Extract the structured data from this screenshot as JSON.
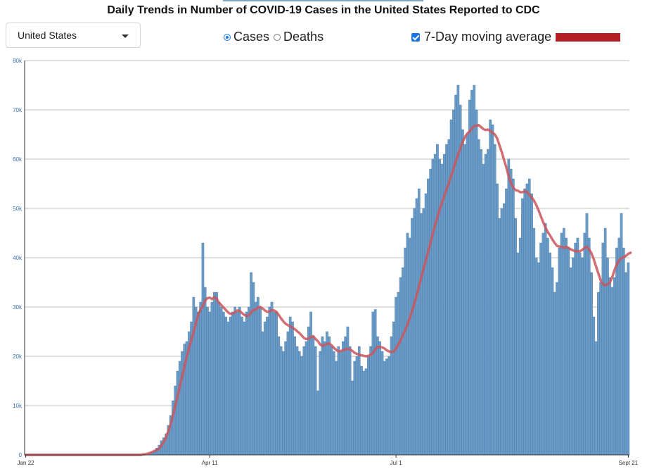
{
  "header": {
    "title": "Daily Trends in Number of COVID-19 Cases in the United States Reported to CDC"
  },
  "controls": {
    "location_select": {
      "value": "United States"
    },
    "metric_radio": {
      "options": [
        "Cases",
        "Deaths"
      ],
      "selected": "Cases"
    },
    "moving_average": {
      "label": "7-Day moving average",
      "checked": true,
      "color": "#b22025"
    }
  },
  "colors": {
    "bar": "#6a9bc7",
    "bar_stroke": "#3f73a4",
    "line": "#c9565c",
    "grid": "#bfbfbf",
    "tick_text": "#3a6fa8"
  },
  "chart_data": {
    "type": "bar",
    "title": "Daily Trends in Number of COVID-19 Cases in the United States Reported to CDC",
    "xlabel": "",
    "ylabel": "",
    "x_start_label": "Jan 22",
    "x_end_label": "Sept 21",
    "x_tick_labels": [
      "Jan 22",
      "Apr 11",
      "Jul 1",
      "Sept 21"
    ],
    "y_tick_labels": [
      "0",
      "10k",
      "20k",
      "30k",
      "40k",
      "50k",
      "60k",
      "70k",
      "80k"
    ],
    "ylim": [
      0,
      80000
    ],
    "grid": true,
    "series": [
      {
        "name": "Cases",
        "type": "bar",
        "values": [
          0,
          0,
          0,
          0,
          0,
          0,
          0,
          0,
          0,
          0,
          0,
          0,
          0,
          0,
          0,
          0,
          0,
          0,
          0,
          0,
          0,
          0,
          0,
          0,
          0,
          0,
          0,
          0,
          0,
          0,
          0,
          0,
          0,
          0,
          0,
          0,
          0,
          0,
          0,
          0,
          0,
          0,
          0,
          0,
          0,
          0,
          0,
          0,
          0,
          0,
          0,
          0,
          0,
          0,
          300,
          500,
          800,
          1400,
          2000,
          2900,
          3500,
          4300,
          6000,
          8000,
          11000,
          14000,
          17000,
          19000,
          21000,
          22500,
          23000,
          25000,
          27000,
          32000,
          30000,
          29000,
          31000,
          43000,
          34000,
          30000,
          29000,
          31000,
          33000,
          33000,
          31000,
          30000,
          29000,
          28000,
          27000,
          28000,
          29000,
          30000,
          29000,
          30000,
          28000,
          27000,
          29000,
          30000,
          37000,
          35000,
          31000,
          32000,
          30000,
          25000,
          27000,
          28000,
          30000,
          31000,
          29000,
          29000,
          24000,
          22000,
          21000,
          23000,
          25000,
          28000,
          27000,
          24000,
          22000,
          21000,
          20000,
          22000,
          23000,
          26000,
          29000,
          24000,
          22000,
          13000,
          21000,
          24000,
          23000,
          25000,
          24000,
          22000,
          21000,
          19000,
          22000,
          21000,
          23000,
          24000,
          26000,
          22000,
          15000,
          19000,
          20000,
          22000,
          18000,
          17000,
          17500,
          20000,
          22000,
          29000,
          29500,
          24000,
          23000,
          21000,
          19000,
          19500,
          20000,
          24000,
          27000,
          32000,
          33000,
          36000,
          38000,
          42000,
          45000,
          44000,
          48000,
          50000,
          52000,
          54000,
          49000,
          50000,
          53000,
          56000,
          58000,
          60000,
          61000,
          63000,
          60000,
          59000,
          61000,
          63000,
          64000,
          68000,
          70000,
          73000,
          75000,
          71000,
          66000,
          63000,
          65000,
          72000,
          74000,
          75000,
          70000,
          64000,
          62000,
          59000,
          61000,
          62000,
          68000,
          67000,
          63000,
          55000,
          48000,
          50000,
          51000,
          54000,
          60000,
          58000,
          56000,
          48000,
          41000,
          44000,
          52000,
          54000,
          55000,
          56000,
          53000,
          46000,
          40000,
          39000,
          43000,
          45000,
          47000,
          44000,
          41000,
          38000,
          33000,
          35000,
          42000,
          45000,
          46000,
          44000,
          42000,
          38000,
          40000,
          43000,
          44000,
          41000,
          40000,
          45000,
          49000,
          44000,
          37000,
          28000,
          23000,
          33000,
          35000,
          43000,
          46000,
          40000,
          36000,
          34000,
          36000,
          42000,
          44000,
          49000,
          42000,
          37000,
          39000
        ]
      },
      {
        "name": "7-Day moving average",
        "type": "line",
        "values": [
          0,
          0,
          0,
          0,
          0,
          0,
          0,
          0,
          0,
          0,
          0,
          0,
          0,
          0,
          0,
          0,
          0,
          0,
          0,
          0,
          0,
          0,
          0,
          0,
          0,
          0,
          0,
          0,
          0,
          0,
          0,
          0,
          0,
          0,
          0,
          0,
          0,
          0,
          0,
          0,
          0,
          0,
          0,
          0,
          0,
          0,
          0,
          0,
          0,
          0,
          0,
          100,
          150,
          250,
          400,
          600,
          800,
          1000,
          1300,
          1900,
          2600,
          3600,
          4800,
          6200,
          8000,
          9900,
          11900,
          13900,
          15900,
          17900,
          19900,
          21700,
          23300,
          25000,
          26700,
          28400,
          29500,
          30200,
          31300,
          31800,
          31900,
          31600,
          32000,
          31700,
          30900,
          30400,
          29900,
          29400,
          28900,
          28600,
          28700,
          28900,
          29300,
          29200,
          28800,
          28400,
          28200,
          28300,
          28900,
          29400,
          29500,
          29900,
          30000,
          29700,
          29300,
          29000,
          29100,
          29400,
          29300,
          29000,
          28400,
          27700,
          27100,
          26600,
          26300,
          26100,
          25800,
          25500,
          25100,
          24700,
          24200,
          23700,
          23500,
          23600,
          23900,
          24100,
          23500,
          23100,
          22400,
          22100,
          22300,
          22500,
          22600,
          22200,
          21700,
          21300,
          21000,
          21100,
          21200,
          21400,
          21500,
          21400,
          21100,
          20700,
          20500,
          20300,
          20200,
          20100,
          20000,
          20100,
          20300,
          20700,
          21400,
          21900,
          21900,
          21800,
          21600,
          21200,
          21000,
          20800,
          21000,
          21600,
          22400,
          23200,
          24300,
          25300,
          26500,
          27800,
          29200,
          30800,
          32400,
          34200,
          36000,
          37800,
          39500,
          41300,
          43000,
          44900,
          46600,
          48200,
          49800,
          51200,
          52500,
          53900,
          55200,
          56600,
          58000,
          59600,
          61000,
          62200,
          63500,
          64500,
          65200,
          65600,
          66200,
          66700,
          66800,
          66900,
          66500,
          66100,
          65900,
          66000,
          65700,
          65300,
          65000,
          64200,
          62800,
          61400,
          59800,
          58300,
          56500,
          55200,
          54200,
          53700,
          53600,
          53300,
          53300,
          53500,
          53300,
          52800,
          52200,
          51600,
          50700,
          49600,
          48400,
          47200,
          46100,
          45200,
          44500,
          43700,
          43000,
          42400,
          42300,
          42200,
          42000,
          42200,
          42000,
          41700,
          41500,
          41300,
          41300,
          41300,
          41600,
          42000,
          42200,
          41700,
          40900,
          39700,
          38200,
          36800,
          35400,
          34600,
          34400,
          34600,
          35000,
          36000,
          37500,
          38600,
          39500,
          39900,
          40100,
          40400,
          40800,
          41000
        ]
      }
    ]
  }
}
